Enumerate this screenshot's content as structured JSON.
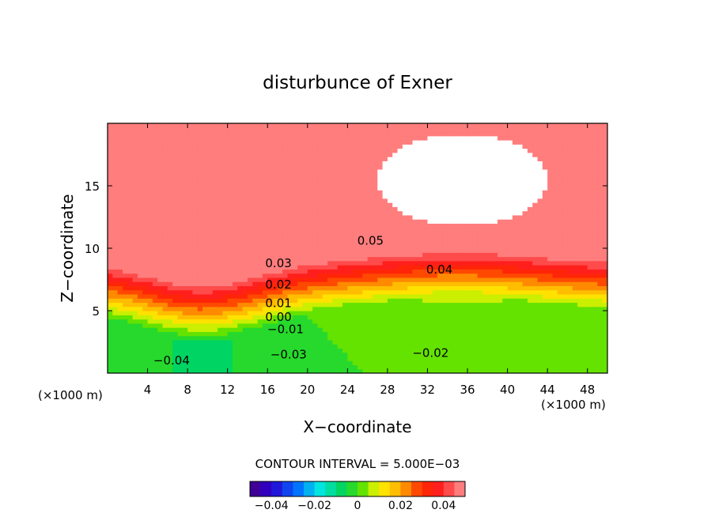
{
  "chart_data": {
    "type": "heatmap",
    "title": "disturbunce of Exner",
    "xlabel": "X−coordinate",
    "ylabel": "Z−coordinate",
    "x_unit_left": "(×1000 m)",
    "x_unit_right": "(×1000 m)",
    "xlim": [
      0,
      50
    ],
    "ylim": [
      0,
      20
    ],
    "x_ticks": [
      4,
      8,
      12,
      16,
      20,
      24,
      28,
      32,
      36,
      40,
      44,
      48
    ],
    "x_tick_labels": [
      "4",
      "8",
      "12",
      "16",
      "20",
      "24",
      "28",
      "32",
      "36",
      "40",
      "44",
      "48"
    ],
    "y_ticks": [
      5,
      10,
      15
    ],
    "y_tick_labels": [
      "5",
      "10",
      "15"
    ],
    "contour_interval_label": "CONTOUR INTERVAL = 5.000E−03",
    "contour_interval": 0.005,
    "value_range": [
      -0.05,
      0.05
    ],
    "contour_labels": [
      {
        "text": "0.05",
        "x": 26.3,
        "z": 10.6
      },
      {
        "text": "0.04",
        "x": 33.2,
        "z": 8.3
      },
      {
        "text": "0.03",
        "x": 17.1,
        "z": 8.8
      },
      {
        "text": "0.02",
        "x": 17.1,
        "z": 7.1
      },
      {
        "text": "0.01",
        "x": 17.1,
        "z": 5.6
      },
      {
        "text": "0.00",
        "x": 17.1,
        "z": 4.5
      },
      {
        "text": "−0.01",
        "x": 17.8,
        "z": 3.5
      },
      {
        "text": "−0.03",
        "x": 18.1,
        "z": 1.5
      },
      {
        "text": "−0.04",
        "x": 6.4,
        "z": 1.0
      },
      {
        "text": "−0.02",
        "x": 32.3,
        "z": 1.6
      }
    ],
    "colorbar": {
      "range": [
        -0.05,
        0.05
      ],
      "tick_values": [
        -0.04,
        -0.02,
        0,
        0.02,
        0.04
      ],
      "tick_labels": [
        "−0.04",
        "−0.02",
        "0",
        "0.02",
        "0.04"
      ]
    },
    "colors": {
      "saturated_region": "#ffffff",
      "lowest": "#4a0a8a",
      "highest": "#ff6a6a"
    }
  }
}
